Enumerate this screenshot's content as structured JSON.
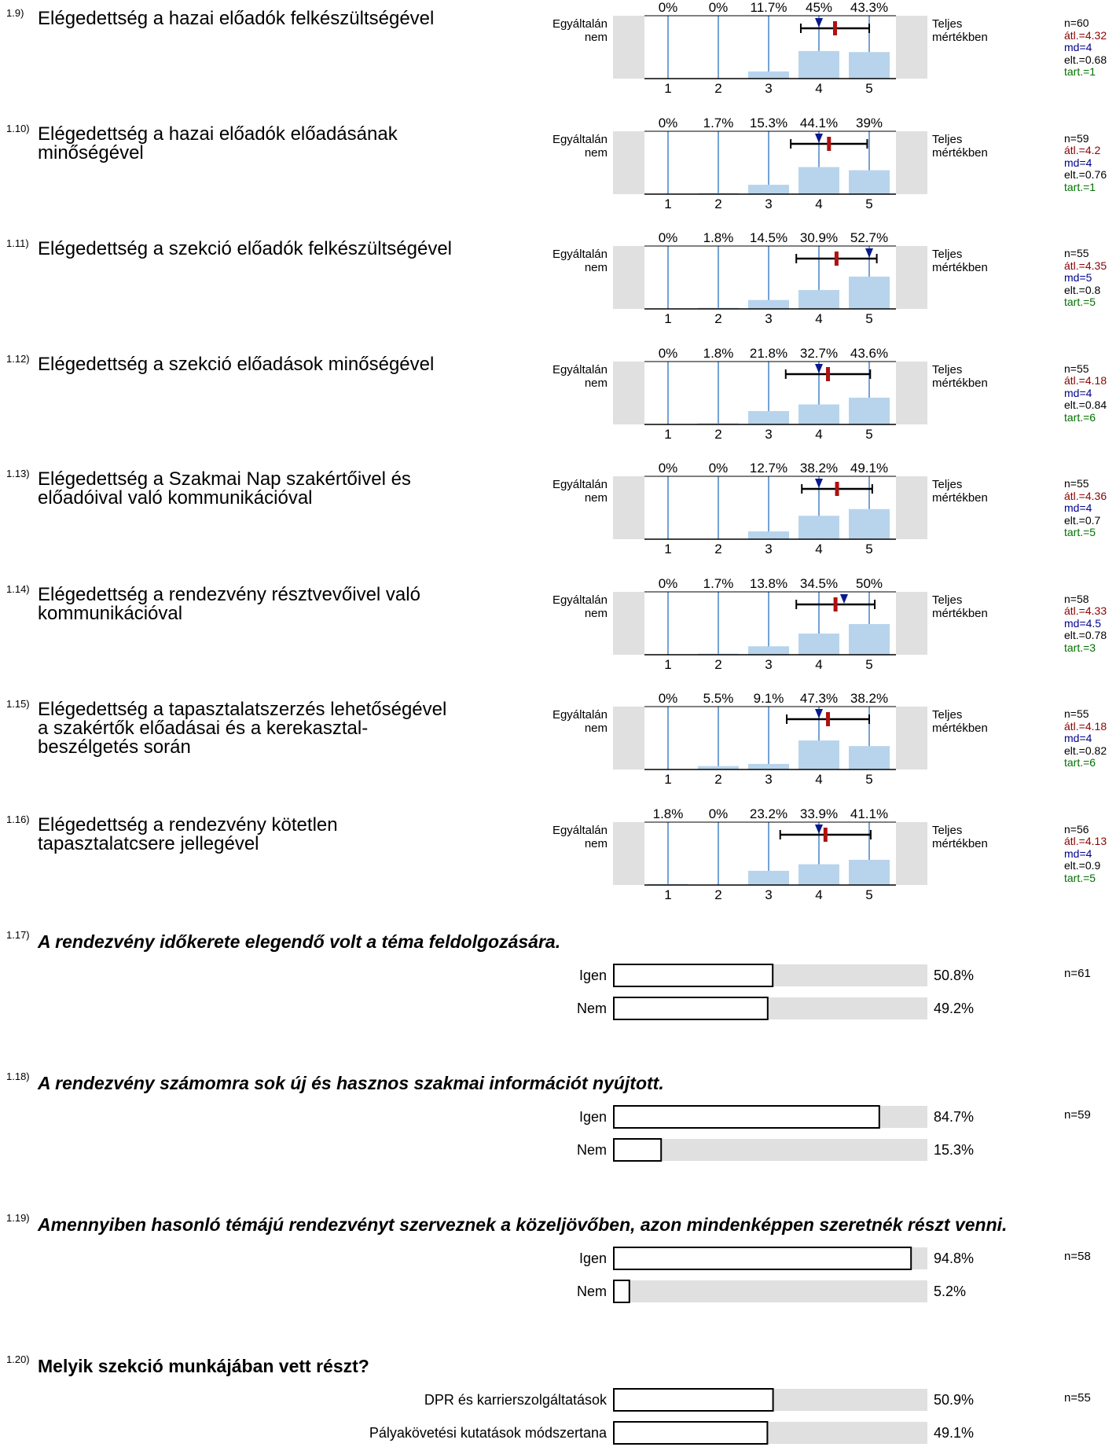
{
  "scale_anchors": {
    "left_line1": "Egyáltalán",
    "left_line2": "nem",
    "right_line1": "Teljes",
    "right_line2": "mértékben"
  },
  "likert_items": [
    {
      "num": "1.9)",
      "lines": [
        "Elégedettség a hazai előadók felkészültségével"
      ],
      "pcts": [
        "0%",
        "0%",
        "11.7%",
        "45%",
        "43.3%"
      ],
      "n": "n=60",
      "mean": "átl.=4.32",
      "md": "md=4",
      "sd": "elt.=0.68",
      "tart": "tart.=1"
    },
    {
      "num": "1.10)",
      "lines": [
        "Elégedettség a hazai előadók előadásának",
        "minőségével"
      ],
      "pcts": [
        "0%",
        "1.7%",
        "15.3%",
        "44.1%",
        "39%"
      ],
      "n": "n=59",
      "mean": "átl.=4.2",
      "md": "md=4",
      "sd": "elt.=0.76",
      "tart": "tart.=1"
    },
    {
      "num": "1.11)",
      "lines": [
        "Elégedettség a szekció előadók felkészültségével"
      ],
      "pcts": [
        "0%",
        "1.8%",
        "14.5%",
        "30.9%",
        "52.7%"
      ],
      "n": "n=55",
      "mean": "átl.=4.35",
      "md": "md=5",
      "sd": "elt.=0.8",
      "tart": "tart.=5"
    },
    {
      "num": "1.12)",
      "lines": [
        "Elégedettség a szekció előadások minőségével"
      ],
      "pcts": [
        "0%",
        "1.8%",
        "21.8%",
        "32.7%",
        "43.6%"
      ],
      "n": "n=55",
      "mean": "átl.=4.18",
      "md": "md=4",
      "sd": "elt.=0.84",
      "tart": "tart.=6"
    },
    {
      "num": "1.13)",
      "lines": [
        "Elégedettség a Szakmai Nap szakértőivel és",
        "előadóival való kommunikációval"
      ],
      "pcts": [
        "0%",
        "0%",
        "12.7%",
        "38.2%",
        "49.1%"
      ],
      "n": "n=55",
      "mean": "átl.=4.36",
      "md": "md=4",
      "sd": "elt.=0.7",
      "tart": "tart.=5"
    },
    {
      "num": "1.14)",
      "lines": [
        "Elégedettség a rendezvény résztvevőivel való",
        "kommunikációval"
      ],
      "pcts": [
        "0%",
        "1.7%",
        "13.8%",
        "34.5%",
        "50%"
      ],
      "n": "n=58",
      "mean": "átl.=4.33",
      "md": "md=4.5",
      "sd": "elt.=0.78",
      "tart": "tart.=3"
    },
    {
      "num": "1.15)",
      "lines": [
        "Elégedettség a tapasztalatszerzés lehetőségével",
        "a szakértők előadásai és a kerekasztal-",
        "beszélgetés során"
      ],
      "pcts": [
        "0%",
        "5.5%",
        "9.1%",
        "47.3%",
        "38.2%"
      ],
      "n": "n=55",
      "mean": "átl.=4.18",
      "md": "md=4",
      "sd": "elt.=0.82",
      "tart": "tart.=6"
    },
    {
      "num": "1.16)",
      "lines": [
        "Elégedettség a rendezvény kötetlen",
        "tapasztalatcsere jellegével"
      ],
      "pcts": [
        "1.8%",
        "0%",
        "23.2%",
        "33.9%",
        "41.1%"
      ],
      "n": "n=56",
      "mean": "átl.=4.13",
      "md": "md=4",
      "sd": "elt.=0.9",
      "tart": "tart.=5"
    }
  ],
  "choice_items": [
    {
      "num": "1.17)",
      "title": "A rendezvény időkerete elegendő volt a téma feldolgozására.",
      "style": "italic",
      "n": "n=61",
      "options": [
        {
          "label": "Igen",
          "pct": "50.8%"
        },
        {
          "label": "Nem",
          "pct": "49.2%"
        }
      ]
    },
    {
      "num": "1.18)",
      "title": "A rendezvény számomra sok új és hasznos szakmai információt nyújtott.",
      "style": "italic",
      "n": "n=59",
      "options": [
        {
          "label": "Igen",
          "pct": "84.7%"
        },
        {
          "label": "Nem",
          "pct": "15.3%"
        }
      ]
    },
    {
      "num": "1.19)",
      "title": "Amennyiben hasonló témájú rendezvényt szerveznek a közeljövőben, azon mindenképpen szeretnék részt venni.",
      "style": "italic",
      "n": "n=58",
      "options": [
        {
          "label": "Igen",
          "pct": "94.8%"
        },
        {
          "label": "Nem",
          "pct": "5.2%"
        }
      ]
    },
    {
      "num": "1.20)",
      "title": "Melyik szekció munkájában vett részt?",
      "style": "bold",
      "n": "n=55",
      "options": [
        {
          "label": "DPR és karrierszolgáltatások",
          "pct": "50.9%"
        },
        {
          "label": "Pályakövetési kutatások módszertana",
          "pct": "49.1%"
        }
      ]
    }
  ],
  "chart_data": [
    {
      "type": "bar",
      "title": "Elégedettség a hazai előadók felkészültségével",
      "categories": [
        "1",
        "2",
        "3",
        "4",
        "5"
      ],
      "values": [
        0,
        0,
        11.7,
        45,
        43.3
      ],
      "mean": 4.32,
      "median": 4,
      "sd": 0.68,
      "n": 60,
      "ylim": [
        0,
        100
      ]
    },
    {
      "type": "bar",
      "title": "Elégedettség a hazai előadók előadásának minőségével",
      "categories": [
        "1",
        "2",
        "3",
        "4",
        "5"
      ],
      "values": [
        0,
        1.7,
        15.3,
        44.1,
        39
      ],
      "mean": 4.2,
      "median": 4,
      "sd": 0.76,
      "n": 59,
      "ylim": [
        0,
        100
      ]
    },
    {
      "type": "bar",
      "title": "Elégedettség a szekció előadók felkészültségével",
      "categories": [
        "1",
        "2",
        "3",
        "4",
        "5"
      ],
      "values": [
        0,
        1.8,
        14.5,
        30.9,
        52.7
      ],
      "mean": 4.35,
      "median": 5,
      "sd": 0.8,
      "n": 55,
      "ylim": [
        0,
        100
      ]
    },
    {
      "type": "bar",
      "title": "Elégedettség a szekció előadások minőségével",
      "categories": [
        "1",
        "2",
        "3",
        "4",
        "5"
      ],
      "values": [
        0,
        1.8,
        21.8,
        32.7,
        43.6
      ],
      "mean": 4.18,
      "median": 4,
      "sd": 0.84,
      "n": 55,
      "ylim": [
        0,
        100
      ]
    },
    {
      "type": "bar",
      "title": "Elégedettség a Szakmai Nap szakértőivel és előadóival való kommunikációval",
      "categories": [
        "1",
        "2",
        "3",
        "4",
        "5"
      ],
      "values": [
        0,
        0,
        12.7,
        38.2,
        49.1
      ],
      "mean": 4.36,
      "median": 4,
      "sd": 0.7,
      "n": 55,
      "ylim": [
        0,
        100
      ]
    },
    {
      "type": "bar",
      "title": "Elégedettség a rendezvény résztvevőivel való kommunikációval",
      "categories": [
        "1",
        "2",
        "3",
        "4",
        "5"
      ],
      "values": [
        0,
        1.7,
        13.8,
        34.5,
        50
      ],
      "mean": 4.33,
      "median": 4.5,
      "sd": 0.78,
      "n": 58,
      "ylim": [
        0,
        100
      ]
    },
    {
      "type": "bar",
      "title": "Elégedettség a tapasztalatszerzés lehetőségével a szakértők előadásai és a kerekasztal-beszélgetés során",
      "categories": [
        "1",
        "2",
        "3",
        "4",
        "5"
      ],
      "values": [
        0,
        5.5,
        9.1,
        47.3,
        38.2
      ],
      "mean": 4.18,
      "median": 4,
      "sd": 0.82,
      "n": 55,
      "ylim": [
        0,
        100
      ]
    },
    {
      "type": "bar",
      "title": "Elégedettség a rendezvény kötetlen tapasztalatcsere jellegével",
      "categories": [
        "1",
        "2",
        "3",
        "4",
        "5"
      ],
      "values": [
        1.8,
        0,
        23.2,
        33.9,
        41.1
      ],
      "mean": 4.13,
      "median": 4,
      "sd": 0.9,
      "n": 56,
      "ylim": [
        0,
        100
      ]
    },
    {
      "type": "bar",
      "title": "A rendezvény időkerete elegendő volt a téma feldolgozására.",
      "categories": [
        "Igen",
        "Nem"
      ],
      "values": [
        50.8,
        49.2
      ],
      "n": 61,
      "ylim": [
        0,
        100
      ]
    },
    {
      "type": "bar",
      "title": "A rendezvény számomra sok új és hasznos szakmai információt nyújtott.",
      "categories": [
        "Igen",
        "Nem"
      ],
      "values": [
        84.7,
        15.3
      ],
      "n": 59,
      "ylim": [
        0,
        100
      ]
    },
    {
      "type": "bar",
      "title": "Amennyiben hasonló témájú rendezvényt szerveznek a közeljövőben, azon mindenképpen szeretnék részt venni.",
      "categories": [
        "Igen",
        "Nem"
      ],
      "values": [
        94.8,
        5.2
      ],
      "n": 58,
      "ylim": [
        0,
        100
      ]
    },
    {
      "type": "bar",
      "title": "Melyik szekció munkájában vett részt?",
      "categories": [
        "DPR és karrierszolgáltatások",
        "Pályakövetési kutatások módszertana"
      ],
      "values": [
        50.9,
        49.1
      ],
      "n": 55,
      "ylim": [
        0,
        100
      ]
    }
  ],
  "colors": {
    "bar_fill": "#b8d4ec",
    "axis_blue": "#2a6fc0",
    "panel_gray": "#e0e0e0",
    "mean_red": "#b01010",
    "median_navy": "#0a1a8c"
  }
}
